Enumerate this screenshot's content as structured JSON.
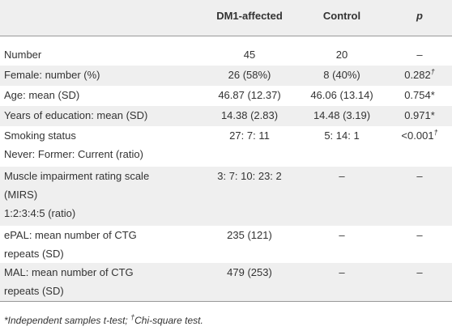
{
  "table": {
    "header": {
      "columns": [
        "DM1-affected",
        "Control",
        "p"
      ]
    },
    "rows": [
      {
        "label": [
          "Number"
        ],
        "cells": [
          "45",
          "20",
          "–"
        ]
      },
      {
        "label": [
          "Female: number (%)"
        ],
        "cells": [
          "26 (58%)",
          "8 (40%)",
          {
            "text": "0.282",
            "sup": "†"
          }
        ]
      },
      {
        "label": [
          "Age: mean (SD)"
        ],
        "cells": [
          "46.87 (12.37)",
          "46.06 (13.14)",
          "0.754*"
        ]
      },
      {
        "label": [
          "Years of education: mean (SD)"
        ],
        "cells": [
          "14.38 (2.83)",
          "14.48 (3.19)",
          "0.971*"
        ]
      },
      {
        "label": [
          "Smoking status",
          "Never: Former: Current (ratio)"
        ],
        "cells": [
          "27: 7: 11",
          "5: 14: 1",
          {
            "text": "<0.001",
            "sup": "†"
          }
        ]
      },
      {
        "label": [
          "Muscle impairment rating scale",
          "(MIRS)",
          "1:2:3:4:5 (ratio)"
        ],
        "cells": [
          "3: 7: 10: 23: 2",
          "–",
          "–"
        ]
      },
      {
        "label": [
          "ePAL: mean number of CTG",
          "repeats (SD)"
        ],
        "cells": [
          "235 (121)",
          "–",
          "–"
        ]
      },
      {
        "label": [
          "MAL: mean number of CTG",
          "repeats (SD)"
        ],
        "cells": [
          "479 (253)",
          "–",
          "–"
        ]
      }
    ],
    "footnote": {
      "part1": "*Independent samples t-test; ",
      "sup": "†",
      "part2": "Chi-square test."
    }
  }
}
